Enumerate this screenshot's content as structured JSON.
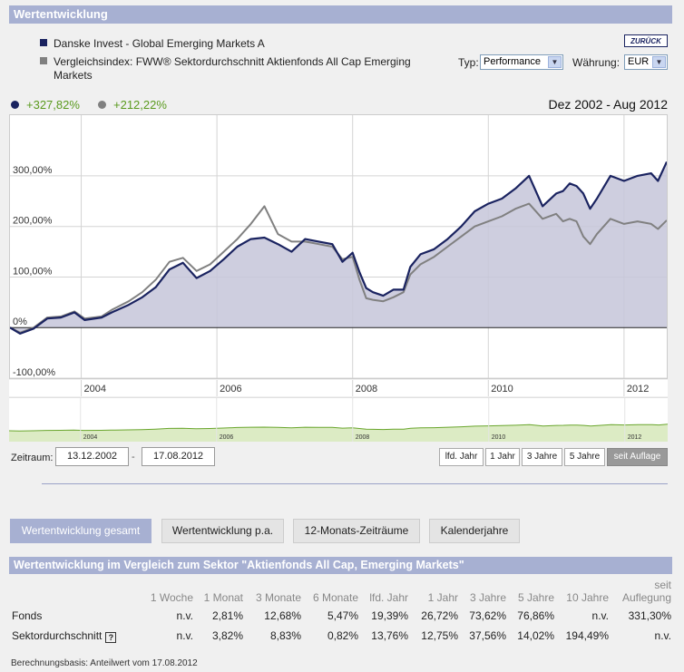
{
  "header": {
    "title": "Wertentwicklung"
  },
  "legend": {
    "fund": {
      "name": "Danske Invest - Global Emerging Markets A",
      "color": "#1a2360"
    },
    "index": {
      "name_line1": "Vergleichsindex: FWW® Sektordurchschnitt Aktienfonds All Cap Emerging",
      "name_line2": "Markets",
      "color": "#808080"
    }
  },
  "back_button": "ZURÜCK",
  "controls": {
    "type_label": "Typ:",
    "type_value": "Performance",
    "currency_label": "Währung:",
    "currency_value": "EUR"
  },
  "performance": {
    "fund": "+327,82%",
    "index": "+212,22%"
  },
  "date_range": "Dez 2002 - Aug 2012",
  "chart_data": {
    "type": "line",
    "title": "",
    "xlabel": "",
    "ylabel": "",
    "x_range": [
      2002.95,
      2012.63
    ],
    "ylim": [
      -100,
      420
    ],
    "y_ticks": [
      {
        "value": -100,
        "label": "-100,00%"
      },
      {
        "value": 0,
        "label": "0%"
      },
      {
        "value": 100,
        "label": "100,00%"
      },
      {
        "value": 200,
        "label": "200,00%"
      },
      {
        "value": 300,
        "label": "300,00%"
      }
    ],
    "x_ticks": [
      {
        "value": 2004,
        "label": "2004"
      },
      {
        "value": 2006,
        "label": "2006"
      },
      {
        "value": 2008,
        "label": "2008"
      },
      {
        "value": 2010,
        "label": "2010"
      },
      {
        "value": 2012,
        "label": "2012"
      }
    ],
    "series": [
      {
        "name": "Danske Invest - Global Emerging Markets A",
        "color": "#1a2360",
        "x": [
          2002.95,
          2003.1,
          2003.3,
          2003.5,
          2003.7,
          2003.9,
          2004.05,
          2004.3,
          2004.45,
          2004.7,
          2004.9,
          2005.1,
          2005.3,
          2005.5,
          2005.7,
          2005.9,
          2006.1,
          2006.3,
          2006.5,
          2006.7,
          2006.9,
          2007.1,
          2007.3,
          2007.5,
          2007.7,
          2007.85,
          2008.0,
          2008.1,
          2008.2,
          2008.3,
          2008.45,
          2008.6,
          2008.75,
          2008.85,
          2009.0,
          2009.2,
          2009.4,
          2009.6,
          2009.8,
          2010.0,
          2010.2,
          2010.4,
          2010.6,
          2010.8,
          2011.0,
          2011.1,
          2011.2,
          2011.3,
          2011.4,
          2011.5,
          2011.6,
          2011.8,
          2012.0,
          2012.2,
          2012.4,
          2012.5,
          2012.63
        ],
        "values": [
          0,
          -12,
          -2,
          18,
          20,
          30,
          15,
          20,
          30,
          45,
          60,
          80,
          115,
          128,
          98,
          112,
          135,
          160,
          175,
          178,
          165,
          150,
          175,
          170,
          165,
          130,
          148,
          110,
          78,
          70,
          63,
          75,
          75,
          120,
          145,
          155,
          175,
          200,
          230,
          245,
          255,
          275,
          300,
          240,
          265,
          270,
          285,
          280,
          265,
          235,
          255,
          300,
          290,
          300,
          305,
          290,
          327.82
        ]
      },
      {
        "name": "Vergleichsindex: FWW® Sektordurchschnitt Aktienfonds All Cap Emerging Markets",
        "color": "#808080",
        "x": [
          2002.95,
          2003.1,
          2003.3,
          2003.5,
          2003.7,
          2003.9,
          2004.05,
          2004.3,
          2004.45,
          2004.7,
          2004.9,
          2005.1,
          2005.3,
          2005.5,
          2005.7,
          2005.9,
          2006.1,
          2006.3,
          2006.5,
          2006.7,
          2006.9,
          2007.1,
          2007.3,
          2007.5,
          2007.7,
          2007.85,
          2008.0,
          2008.1,
          2008.2,
          2008.3,
          2008.45,
          2008.6,
          2008.75,
          2008.85,
          2009.0,
          2009.2,
          2009.4,
          2009.6,
          2009.8,
          2010.0,
          2010.2,
          2010.4,
          2010.6,
          2010.8,
          2011.0,
          2011.1,
          2011.2,
          2011.3,
          2011.4,
          2011.5,
          2011.6,
          2011.8,
          2012.0,
          2012.2,
          2012.4,
          2012.5,
          2012.63
        ],
        "values": [
          0,
          -10,
          0,
          20,
          22,
          32,
          18,
          22,
          35,
          52,
          70,
          95,
          130,
          138,
          112,
          125,
          150,
          175,
          205,
          240,
          185,
          170,
          170,
          165,
          160,
          135,
          140,
          95,
          58,
          55,
          52,
          60,
          70,
          105,
          125,
          140,
          160,
          180,
          200,
          210,
          220,
          235,
          245,
          215,
          225,
          210,
          215,
          210,
          180,
          165,
          185,
          215,
          205,
          210,
          205,
          195,
          212.22
        ]
      }
    ]
  },
  "zeitraum": {
    "label": "Zeitraum:",
    "from": "13.12.2002",
    "to": "17.08.2012",
    "dash": "-"
  },
  "period_buttons": [
    "lfd. Jahr",
    "1 Jahr",
    "3 Jahre",
    "5 Jahre",
    "seit Auflage"
  ],
  "tabs": [
    "Wertentwicklung gesamt",
    "Wertentwicklung p.a.",
    "12-Monats-Zeiträume",
    "Kalenderjahre"
  ],
  "table": {
    "title": "Wertentwicklung im Vergleich zum Sektor \"Aktienfonds All Cap, Emerging Markets\"",
    "columns": [
      "",
      "1 Woche",
      "1 Monat",
      "3 Monate",
      "6 Monate",
      "lfd. Jahr",
      "1 Jahr",
      "3 Jahre",
      "5 Jahre",
      "10 Jahre"
    ],
    "last_col_line1": "seit",
    "last_col_line2": "Auflegung",
    "rows": [
      [
        "Fonds",
        "n.v.",
        "2,81%",
        "12,68%",
        "5,47%",
        "19,39%",
        "26,72%",
        "73,62%",
        "76,86%",
        "n.v.",
        "331,30%"
      ],
      [
        "Sektordurchschnitt",
        "n.v.",
        "3,82%",
        "8,83%",
        "0,82%",
        "13,76%",
        "12,75%",
        "37,56%",
        "14,02%",
        "194,49%",
        "n.v."
      ]
    ],
    "help_icon": "?"
  },
  "footer": "Berechnungsbasis: Anteilwert vom 17.08.2012"
}
